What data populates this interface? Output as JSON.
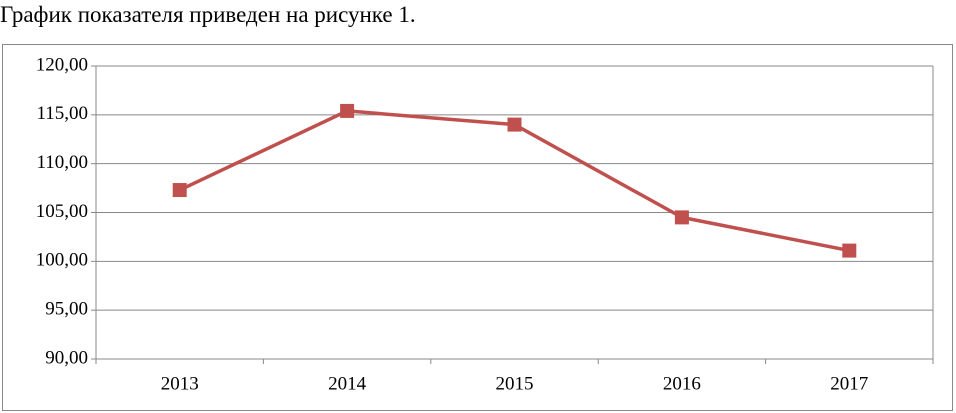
{
  "text": "График показателя приведен на рисунке 1.",
  "chart_data": {
    "type": "line",
    "categories": [
      "2013",
      "2014",
      "2015",
      "2016",
      "2017"
    ],
    "series": [
      {
        "color": "#c0504d",
        "values": [
          107.3,
          115.4,
          114.0,
          104.5,
          101.1
        ]
      }
    ],
    "ylim": [
      90,
      120
    ],
    "yticks": [
      {
        "value": 90,
        "label": "90,00"
      },
      {
        "value": 95,
        "label": "95,00"
      },
      {
        "value": 100,
        "label": "100,00"
      },
      {
        "value": 105,
        "label": "105,00"
      },
      {
        "value": 110,
        "label": "110,00"
      },
      {
        "value": 115,
        "label": "115,00"
      },
      {
        "value": 120,
        "label": "120,00"
      }
    ],
    "grid": true
  }
}
